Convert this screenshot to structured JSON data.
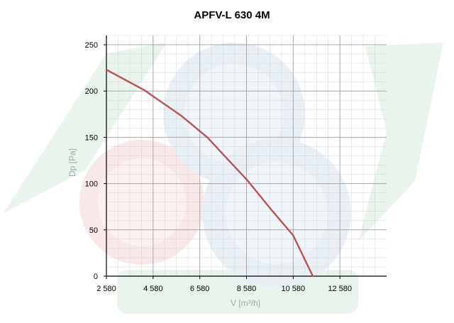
{
  "chart_data": {
    "type": "line",
    "title": "APFV-L 630 4M",
    "xlabel": "V [m³/h]",
    "ylabel": "Dp [Pa]",
    "xlim": [
      2580,
      14580
    ],
    "ylim": [
      0,
      260
    ],
    "x_ticks": [
      2580,
      4580,
      6580,
      8580,
      10580,
      12580
    ],
    "x_tick_labels": [
      "2 580",
      "4 580",
      "6 580",
      "8 580",
      "10 580",
      "12 580"
    ],
    "y_ticks": [
      0,
      50,
      100,
      150,
      200,
      250
    ],
    "y_tick_labels": [
      "0",
      "50",
      "100",
      "150",
      "200",
      "250"
    ],
    "grid": true,
    "series": [
      {
        "x": [
          2580,
          4200,
          5000,
          5800,
          6900,
          7600,
          8600,
          9600,
          10580,
          11420
        ],
        "y": [
          223,
          201,
          187,
          173,
          150,
          131,
          104,
          73,
          44,
          0
        ]
      }
    ],
    "colors": {
      "line": "#c0504d",
      "grid": "#c8c8c8",
      "axis": "#000000",
      "axis_label": "#a6a6a6",
      "watermark_green": "#e9f4ec",
      "watermark_blue": "#e8f0f6",
      "watermark_red": "#f8e8e8"
    }
  }
}
